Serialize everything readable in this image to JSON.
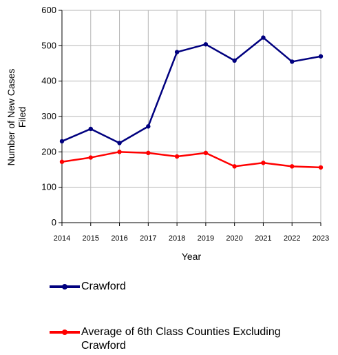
{
  "chart_data": {
    "type": "line",
    "title": "",
    "xlabel": "Year",
    "ylabel_line1": "Number of New Cases",
    "ylabel_line2": "Filed",
    "x": [
      "2014",
      "2015",
      "2016",
      "2017",
      "2018",
      "2019",
      "2020",
      "2021",
      "2022",
      "2023"
    ],
    "ylim": [
      0,
      600
    ],
    "yticks": [
      "0",
      "100",
      "200",
      "300",
      "400",
      "500",
      "600"
    ],
    "grid": true,
    "legend_placement": "bottom",
    "series": [
      {
        "name": "Crawford",
        "color": "#00007f",
        "values": [
          230,
          265,
          225,
          272,
          482,
          504,
          458,
          523,
          455,
          470
        ]
      },
      {
        "name": "Average of 6th Class Counties Excluding Crawford",
        "color": "#ff0000",
        "values": [
          172,
          184,
          200,
          197,
          187,
          197,
          159,
          169,
          159,
          156
        ]
      }
    ],
    "legend_labels": [
      [
        "Crawford"
      ],
      [
        "Average of 6th Class Counties Excluding",
        "Crawford"
      ]
    ]
  }
}
